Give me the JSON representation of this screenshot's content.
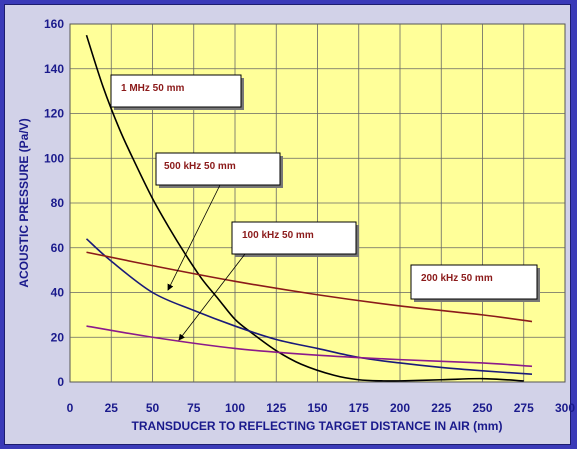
{
  "chart_data": {
    "type": "line",
    "xlabel": "TRANSDUCER TO REFLECTING TARGET DISTANCE IN AIR (mm)",
    "ylabel": "ACOUSTIC PRESSURE (Pa/V)",
    "xlim": [
      0,
      300
    ],
    "ylim": [
      0,
      160
    ],
    "xticks": [
      0,
      25,
      50,
      75,
      100,
      125,
      150,
      175,
      200,
      225,
      250,
      275,
      300
    ],
    "yticks": [
      0,
      20,
      40,
      60,
      80,
      100,
      120,
      140,
      160
    ],
    "grid": true,
    "series": [
      {
        "name": "1 MHz 50 mm",
        "color": "#000000",
        "x": [
          10,
          20,
          30,
          40,
          50,
          60,
          70,
          80,
          90,
          100,
          110,
          125,
          140,
          160,
          175,
          190,
          200,
          225,
          250,
          275
        ],
        "y": [
          155,
          132,
          113,
          97,
          82,
          69,
          57,
          46,
          37,
          28,
          22,
          14,
          8,
          3,
          1,
          0.5,
          0.5,
          1,
          1.5,
          0.5
        ]
      },
      {
        "name": "500 kHz 50 mm",
        "color": "#1a1a7a",
        "x": [
          10,
          25,
          50,
          75,
          100,
          125,
          150,
          175,
          200,
          225,
          250,
          280
        ],
        "y": [
          64,
          54,
          40,
          32,
          25,
          19,
          15,
          11,
          8.5,
          6.5,
          5,
          3.5
        ]
      },
      {
        "name": "200 kHz 50 mm",
        "color": "#8b1a1a",
        "x": [
          10,
          50,
          100,
          150,
          200,
          250,
          280
        ],
        "y": [
          58,
          52,
          45,
          39,
          34,
          30,
          27
        ]
      },
      {
        "name": "100 kHz 50 mm",
        "color": "#8b1a8b",
        "x": [
          10,
          50,
          100,
          150,
          200,
          250,
          280
        ],
        "y": [
          25,
          20,
          15,
          12,
          10,
          8.5,
          7
        ]
      }
    ],
    "annotations": [
      {
        "text": "1 MHz 50 mm"
      },
      {
        "text": "500 kHz 50 mm"
      },
      {
        "text": "100 kHz 50 mm"
      },
      {
        "text": "200 kHz 50 mm"
      }
    ]
  }
}
